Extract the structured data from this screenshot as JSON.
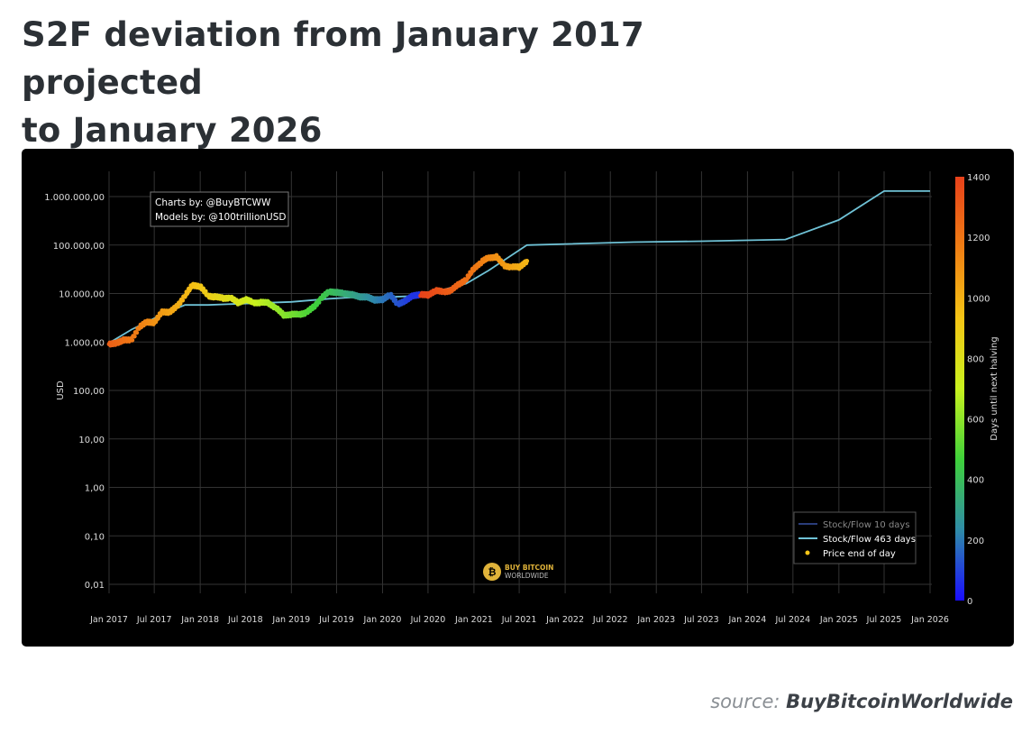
{
  "page": {
    "title_line1": "S2F deviation from January 2017 projected",
    "title_line2": "to January 2026",
    "source_prefix": "source:",
    "source_name": "BuyBitcoinWorldwide"
  },
  "chart_data": {
    "type": "scatter",
    "background": "#000000",
    "credits": [
      "Charts by: @BuyBTCWW",
      "Models by: @100trillionUSD"
    ],
    "watermark": [
      "BUY BITCOIN",
      "WORLDWIDE"
    ],
    "y_axis": {
      "label": "USD",
      "scale": "log",
      "range": [
        0.01,
        1000000
      ],
      "ticks": [
        {
          "value": 1000000,
          "label": "1.000.000,00"
        },
        {
          "value": 100000,
          "label": "100.000,00"
        },
        {
          "value": 10000,
          "label": "10.000,00"
        },
        {
          "value": 1000,
          "label": "1.000,00"
        },
        {
          "value": 100,
          "label": "100,00"
        },
        {
          "value": 10,
          "label": "10,00"
        },
        {
          "value": 1,
          "label": "1,00"
        },
        {
          "value": 0.1,
          "label": "0,10"
        },
        {
          "value": 0.01,
          "label": "0,01"
        }
      ]
    },
    "x_axis": {
      "range": [
        "2017-01-01",
        "2026-01-01"
      ],
      "ticks": [
        {
          "date": "2017-01-01",
          "label": "Jan 2017"
        },
        {
          "date": "2017-07-01",
          "label": "Jul 2017"
        },
        {
          "date": "2018-01-01",
          "label": "Jan 2018"
        },
        {
          "date": "2018-07-01",
          "label": "Jul 2018"
        },
        {
          "date": "2019-01-01",
          "label": "Jan 2019"
        },
        {
          "date": "2019-07-01",
          "label": "Jul 2019"
        },
        {
          "date": "2020-01-01",
          "label": "Jan 2020"
        },
        {
          "date": "2020-07-01",
          "label": "Jul 2020"
        },
        {
          "date": "2021-01-01",
          "label": "Jan 2021"
        },
        {
          "date": "2021-07-01",
          "label": "Jul 2021"
        },
        {
          "date": "2022-01-01",
          "label": "Jan 2022"
        },
        {
          "date": "2022-07-01",
          "label": "Jul 2022"
        },
        {
          "date": "2023-01-01",
          "label": "Jan 2023"
        },
        {
          "date": "2023-07-01",
          "label": "Jul 2023"
        },
        {
          "date": "2024-01-01",
          "label": "Jan 2024"
        },
        {
          "date": "2024-07-01",
          "label": "Jul 2024"
        },
        {
          "date": "2025-01-01",
          "label": "Jan 2025"
        },
        {
          "date": "2025-07-01",
          "label": "Jul 2025"
        },
        {
          "date": "2026-01-01",
          "label": "Jan 2026"
        }
      ]
    },
    "grid": true,
    "colorbar": {
      "label": "Days until next halving",
      "range": [
        0,
        1400
      ],
      "ticks": [
        0,
        200,
        400,
        600,
        800,
        1000,
        1200,
        1400
      ],
      "colors": [
        "#1a0dff",
        "#2f8ca8",
        "#3fd13a",
        "#c9f21e",
        "#f5c515",
        "#f07e14",
        "#e8411a"
      ]
    },
    "legend": {
      "position": "bottom-right",
      "entries": [
        {
          "name": "Stock/Flow 10 days",
          "kind": "line",
          "color": "#2a3d7a"
        },
        {
          "name": "Stock/Flow 463 days",
          "kind": "line",
          "color": "#6fc2d6"
        },
        {
          "name": "Price end of day",
          "kind": "dot",
          "color": "#f5c518"
        }
      ]
    },
    "series": [
      {
        "name": "Stock/Flow 463 days",
        "kind": "line",
        "color": "#6fc2d6",
        "points": [
          [
            "2017-01-01",
            950
          ],
          [
            "2017-04-01",
            1800
          ],
          [
            "2017-08-01",
            3700
          ],
          [
            "2017-11-01",
            5800
          ],
          [
            "2018-02-01",
            5800
          ],
          [
            "2018-08-01",
            6300
          ],
          [
            "2019-01-01",
            6700
          ],
          [
            "2019-06-01",
            7800
          ],
          [
            "2019-09-01",
            8300
          ],
          [
            "2020-02-01",
            8500
          ],
          [
            "2020-06-01",
            9000
          ],
          [
            "2020-12-01",
            16000
          ],
          [
            "2021-03-01",
            30000
          ],
          [
            "2021-08-01",
            100000
          ],
          [
            "2022-01-01",
            105000
          ],
          [
            "2022-10-01",
            115000
          ],
          [
            "2023-07-01",
            120000
          ],
          [
            "2024-06-01",
            130000
          ],
          [
            "2025-01-01",
            330000
          ],
          [
            "2025-07-01",
            1300000
          ],
          [
            "2026-01-01",
            1300000
          ]
        ]
      },
      {
        "name": "Price end of day",
        "kind": "dots",
        "points": [
          [
            "2017-01-01",
            900,
            1285
          ],
          [
            "2017-02-01",
            950,
            1255
          ],
          [
            "2017-03-01",
            1100,
            1225
          ],
          [
            "2017-04-01",
            1100,
            1195
          ],
          [
            "2017-05-01",
            2000,
            1165
          ],
          [
            "2017-06-01",
            2600,
            1135
          ],
          [
            "2017-07-01",
            2500,
            1105
          ],
          [
            "2017-08-01",
            4200,
            1070
          ],
          [
            "2017-09-01",
            4100,
            1045
          ],
          [
            "2017-10-01",
            5500,
            1015
          ],
          [
            "2017-11-01",
            9000,
            985
          ],
          [
            "2017-12-01",
            15000,
            955
          ],
          [
            "2018-01-01",
            14000,
            925
          ],
          [
            "2018-02-01",
            9000,
            895
          ],
          [
            "2018-03-01",
            8500,
            865
          ],
          [
            "2018-04-01",
            8000,
            835
          ],
          [
            "2018-05-01",
            8200,
            805
          ],
          [
            "2018-06-01",
            6500,
            775
          ],
          [
            "2018-07-01",
            7500,
            745
          ],
          [
            "2018-08-01",
            6500,
            715
          ],
          [
            "2018-09-01",
            6500,
            680
          ],
          [
            "2018-10-01",
            6400,
            650
          ],
          [
            "2018-11-01",
            5000,
            620
          ],
          [
            "2018-12-01",
            3600,
            590
          ],
          [
            "2019-01-01",
            3700,
            560
          ],
          [
            "2019-02-01",
            3700,
            530
          ],
          [
            "2019-03-01",
            4000,
            500
          ],
          [
            "2019-04-01",
            5300,
            470
          ],
          [
            "2019-05-01",
            8000,
            440
          ],
          [
            "2019-06-01",
            11000,
            410
          ],
          [
            "2019-07-01",
            10500,
            380
          ],
          [
            "2019-08-01",
            10000,
            345
          ],
          [
            "2019-09-01",
            9500,
            315
          ],
          [
            "2019-10-01",
            8500,
            285
          ],
          [
            "2019-11-01",
            8500,
            255
          ],
          [
            "2019-12-01",
            7300,
            225
          ],
          [
            "2020-01-01",
            7500,
            195
          ],
          [
            "2020-02-01",
            9500,
            165
          ],
          [
            "2020-03-01",
            6000,
            130
          ],
          [
            "2020-04-01",
            7000,
            100
          ],
          [
            "2020-05-01",
            9000,
            70
          ],
          [
            "2020-06-01",
            9500,
            1400
          ],
          [
            "2020-07-01",
            9300,
            1375
          ],
          [
            "2020-08-01",
            11500,
            1345
          ],
          [
            "2020-09-01",
            10800,
            1315
          ],
          [
            "2020-10-01",
            11500,
            1285
          ],
          [
            "2020-11-01",
            15500,
            1255
          ],
          [
            "2020-12-01",
            19500,
            1225
          ],
          [
            "2021-01-01",
            33000,
            1195
          ],
          [
            "2021-02-01",
            45000,
            1165
          ],
          [
            "2021-03-01",
            55000,
            1135
          ],
          [
            "2021-04-01",
            57000,
            1105
          ],
          [
            "2021-05-01",
            38000,
            1075
          ],
          [
            "2021-06-01",
            35000,
            1045
          ],
          [
            "2021-07-01",
            35000,
            1015
          ],
          [
            "2021-08-01",
            47000,
            985
          ]
        ]
      }
    ]
  }
}
